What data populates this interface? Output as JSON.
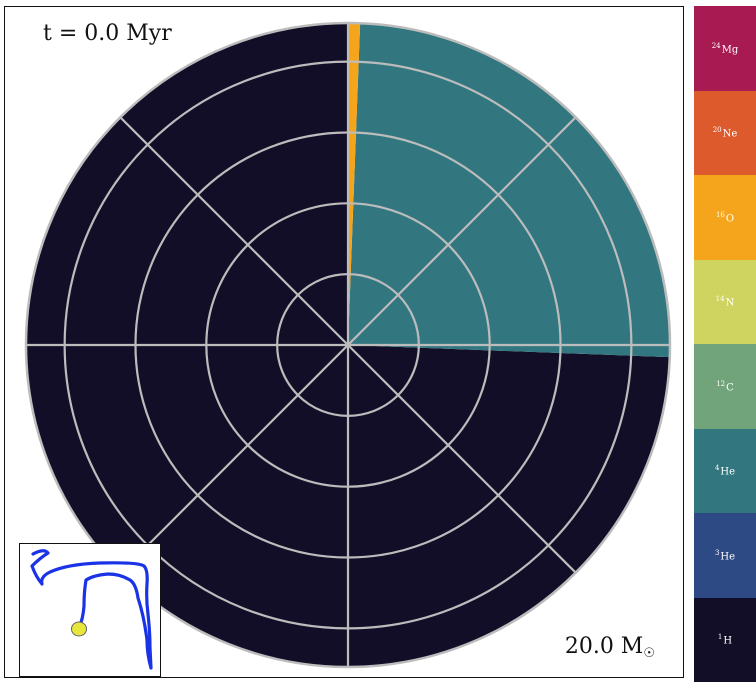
{
  "time_label": "t = 0.0 Myr",
  "mass_label": "20.0 M",
  "mass_symbol": "☉",
  "chart_data": {
    "type": "polar-composition",
    "fractions": [
      {
        "species": "1H",
        "fraction": 0.744
      },
      {
        "species": "4He",
        "fraction": 0.25
      },
      {
        "species": "16O",
        "fraction": 0.006
      }
    ],
    "radial_gridlines": 4,
    "angular_gridlines_deg": [
      0,
      45,
      90,
      135,
      180,
      225,
      270,
      315
    ],
    "grid": true
  },
  "legend": [
    {
      "mass": "24",
      "symbol": "Mg",
      "color": "#a81b52"
    },
    {
      "mass": "20",
      "symbol": "Ne",
      "color": "#dc5a2c"
    },
    {
      "mass": "16",
      "symbol": "O",
      "color": "#f4a51c"
    },
    {
      "mass": "14",
      "symbol": "N",
      "color": "#cfd460"
    },
    {
      "mass": "12",
      "symbol": "C",
      "color": "#72a47c"
    },
    {
      "mass": "4",
      "symbol": "He",
      "color": "#327780"
    },
    {
      "mass": "3",
      "symbol": "He",
      "color": "#2d4a84"
    },
    {
      "mass": "1",
      "symbol": "H",
      "color": "#130e28"
    }
  ],
  "colors": {
    "1H": "#130e28",
    "4He": "#327780",
    "16O": "#f4a51c",
    "grid": "#bcbcbc",
    "track": "#1a33e6",
    "marker": "#e6e63c"
  },
  "inset": {
    "icon": "hr-diagram-track"
  }
}
